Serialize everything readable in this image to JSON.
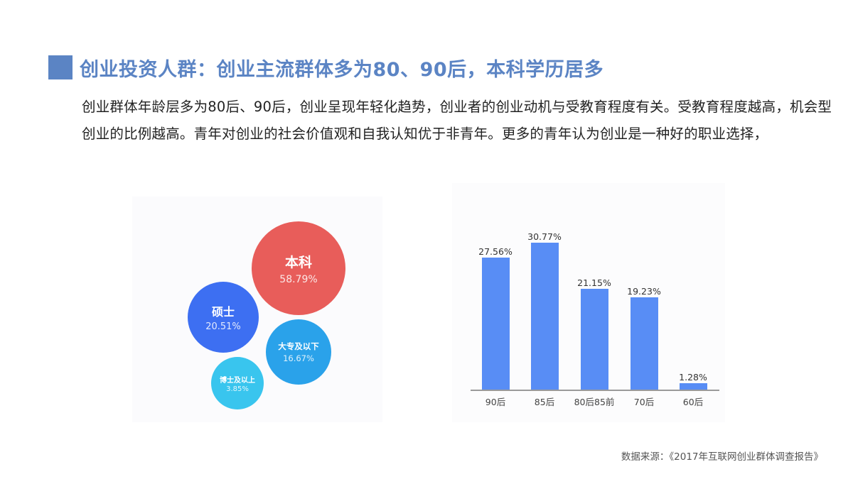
{
  "header": {
    "title": "创业投资人群：创业主流群体多为80、90后，本科学历居多",
    "accent_color": "#5b84c4"
  },
  "intro": {
    "text": "创业群体年龄层多为80后、90后，创业呈现年轻化趋势，创业者的创业动机与受教育程度有关。受教育程度越高，机会型创业的比例越高。青年对创业的社会价值观和自我认知优于非青年。更多的青年认为创业是一种好的职业选择，"
  },
  "footer": {
    "source": "数据来源：《2017年互联网创业群体调查报告》"
  },
  "chart_data": [
    {
      "type": "bubble",
      "title": "",
      "categories": [
        "本科",
        "硕士",
        "大专及以下",
        "博士及以上"
      ],
      "values": [
        58.79,
        20.51,
        16.67,
        3.85
      ],
      "labels": [
        "58.79%",
        "20.51%",
        "16.67%",
        "3.85%"
      ],
      "colors": [
        "#e85d5a",
        "#3d6ff2",
        "#2aa2ea",
        "#39c5ee"
      ],
      "unit": "%"
    },
    {
      "type": "bar",
      "title": "",
      "categories": [
        "90后",
        "85后",
        "80后85前",
        "70后",
        "60后"
      ],
      "values": [
        27.56,
        30.77,
        21.15,
        19.23,
        1.28
      ],
      "labels": [
        "27.56%",
        "30.77%",
        "21.15%",
        "19.23%",
        "1.28%"
      ],
      "xlabel": "",
      "ylabel": "",
      "ylim": [
        0,
        35
      ],
      "grid": false,
      "bar_color": "#588df5",
      "unit": "%"
    }
  ]
}
